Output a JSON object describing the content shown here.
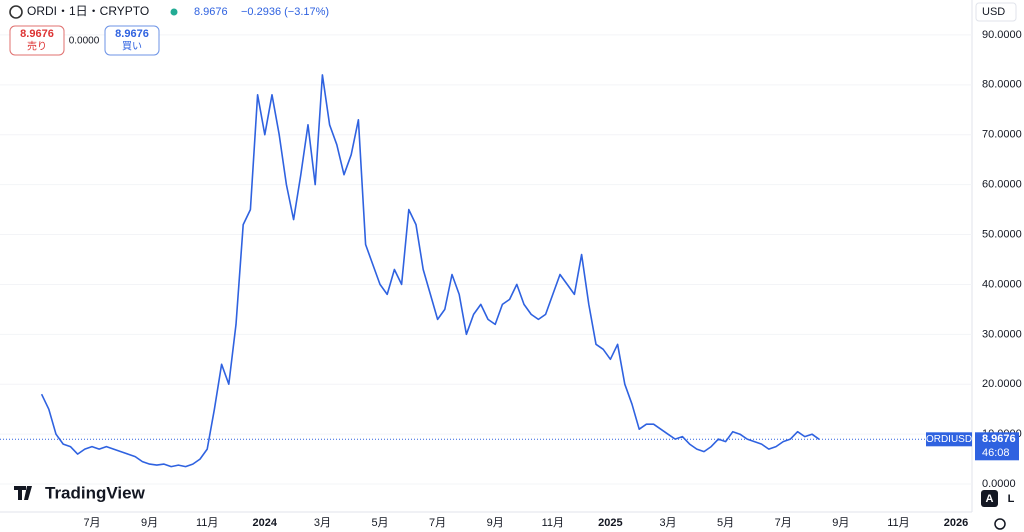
{
  "chart_data": {
    "type": "line",
    "symbol": "ORDI・1日・CRYPTO",
    "last": "8.9676",
    "change": "−0.2936 (−3.17%)",
    "sell": {
      "price": "8.9676",
      "label": "売り"
    },
    "spread": "0.0000",
    "buy": {
      "price": "8.9676",
      "label": "買い"
    },
    "currency": "USD",
    "price_tag": {
      "name": "ORDIUSD",
      "value": 8.9676,
      "countdown": "46:08"
    },
    "logo": "TradingView",
    "buttons": [
      "A",
      "L"
    ],
    "categories": [
      null,
      null,
      null,
      null,
      null,
      null,
      null,
      "7月",
      null,
      null,
      null,
      null,
      null,
      null,
      null,
      "9月",
      null,
      null,
      null,
      null,
      null,
      null,
      null,
      "11月",
      null,
      null,
      null,
      null,
      null,
      null,
      null,
      "2024",
      null,
      null,
      null,
      null,
      null,
      null,
      null,
      "3月",
      null,
      null,
      null,
      null,
      null,
      null,
      null,
      "5月",
      null,
      null,
      null,
      null,
      null,
      null,
      null,
      "7月",
      null,
      null,
      null,
      null,
      null,
      null,
      null,
      "9月",
      null,
      null,
      null,
      null,
      null,
      null,
      null,
      "11月",
      null,
      null,
      null,
      null,
      null,
      null,
      null,
      "2025",
      null,
      null,
      null,
      null,
      null,
      null,
      null,
      "3月",
      null,
      null,
      null,
      null,
      null,
      null,
      null,
      "5月",
      null,
      null,
      null,
      null,
      null,
      null,
      null,
      "7月",
      null,
      null,
      null,
      null,
      null,
      null,
      null,
      "9月",
      null,
      null,
      null,
      null,
      null,
      null,
      null,
      "11月",
      null,
      null,
      null,
      null,
      null,
      null,
      null,
      "2026"
    ],
    "series": [
      {
        "name": "ORDIUSD",
        "color": "#2f62e0",
        "values": [
          18,
          15,
          10,
          8,
          7.5,
          6,
          7,
          7.5,
          7,
          7.5,
          7,
          6.5,
          6,
          5.5,
          4.5,
          4,
          3.8,
          4,
          3.5,
          3.8,
          3.5,
          4,
          5,
          7,
          15,
          24,
          20,
          32,
          52,
          55,
          78,
          70,
          78,
          70,
          60,
          53,
          62,
          72,
          60,
          82,
          72,
          68,
          62,
          66,
          73,
          48,
          44,
          40,
          38,
          43,
          40,
          55,
          52,
          43,
          38,
          33,
          35,
          42,
          38,
          30,
          34,
          36,
          33,
          32,
          36,
          37,
          40,
          36,
          34,
          33,
          34,
          38,
          42,
          40,
          38,
          46,
          36,
          28,
          27,
          25,
          28,
          20,
          16,
          11,
          12,
          12,
          11,
          10,
          9,
          9.5,
          8,
          7,
          6.5,
          7.5,
          9,
          8.5,
          10.5,
          10,
          9,
          8.5,
          8,
          7,
          7.5,
          8.5,
          9,
          10.5,
          9.5,
          10,
          8.9676,
          null,
          null,
          null,
          null,
          null,
          null,
          null,
          null,
          null,
          null,
          null,
          null,
          null,
          null,
          null,
          null,
          null,
          null,
          null
        ]
      }
    ],
    "ylim": [
      -5.6,
      97
    ],
    "yticks": [
      {
        "value": 0,
        "label": "0.0000"
      },
      {
        "value": 10,
        "label": "10.0000"
      },
      {
        "value": 20,
        "label": "20.0000"
      },
      {
        "value": 30,
        "label": "30.0000"
      },
      {
        "value": 40,
        "label": "40.0000"
      },
      {
        "value": 50,
        "label": "50.0000"
      },
      {
        "value": 60,
        "label": "60.0000"
      },
      {
        "value": 70,
        "label": "70.0000"
      },
      {
        "value": 80,
        "label": "80.0000"
      },
      {
        "value": 90,
        "label": "90.0000"
      }
    ],
    "grid": true
  }
}
